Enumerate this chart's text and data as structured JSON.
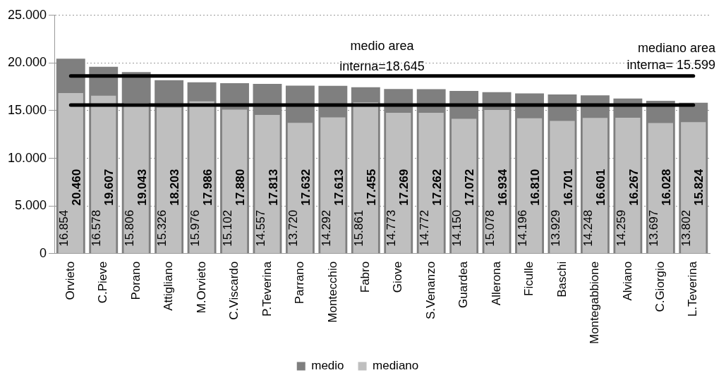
{
  "chart_data": {
    "type": "bar",
    "categories": [
      "Orvieto",
      "C.Pieve",
      "Porano",
      "Attigliano",
      "M.Orvieto",
      "C.Viscardo",
      "P.Teverina",
      "Parrano",
      "Montecchio",
      "Fabro",
      "Giove",
      "S.Venanzo",
      "Guardea",
      "Allerona",
      "Ficulle",
      "Baschi",
      "Montegabbione",
      "Alviano",
      "C.Giorgio",
      "L.Teverina"
    ],
    "series": [
      {
        "name": "medio",
        "color": "#7f7f7f",
        "values": [
          20460,
          19607,
          19043,
          18203,
          17986,
          17880,
          17813,
          17632,
          17613,
          17455,
          17269,
          17262,
          17072,
          16934,
          16810,
          16701,
          16601,
          16267,
          16028,
          15824
        ],
        "value_labels": [
          "20.460",
          "19.607",
          "19.043",
          "18.203",
          "17.986",
          "17.880",
          "17.813",
          "17.632",
          "17.613",
          "17.455",
          "17.269",
          "17.262",
          "17.072",
          "16.934",
          "16.810",
          "16.701",
          "16.601",
          "16.267",
          "16.028",
          "15.824"
        ]
      },
      {
        "name": "mediano",
        "color": "#bfbfbf",
        "values": [
          16854,
          16578,
          15806,
          15326,
          15976,
          15102,
          14557,
          13720,
          14292,
          15861,
          14773,
          14772,
          14150,
          15078,
          14196,
          13929,
          14248,
          14259,
          13697,
          13802
        ],
        "value_labels": [
          "16.854",
          "16.578",
          "15.806",
          "15.326",
          "15.976",
          "15.102",
          "14.557",
          "13.720",
          "14.292",
          "15.861",
          "14.773",
          "14.772",
          "14.150",
          "15.078",
          "14.196",
          "13.929",
          "14.248",
          "14.259",
          "13.697",
          "13.802"
        ]
      }
    ],
    "ylim": [
      0,
      25000
    ],
    "yticks": [
      {
        "value": 0,
        "label": "0"
      },
      {
        "value": 5000,
        "label": "5.000"
      },
      {
        "value": 10000,
        "label": "10.000"
      },
      {
        "value": 15000,
        "label": "15.000"
      },
      {
        "value": 20000,
        "label": "20.000"
      },
      {
        "value": 25000,
        "label": "25.000"
      }
    ],
    "ref_lines": [
      {
        "axis": "y",
        "value": 18645,
        "label": "medio area\ninterna=18.645",
        "color": "#000000"
      },
      {
        "axis": "y",
        "value": 15599,
        "label": "mediano area\ninterna= 15.599",
        "color": "#000000"
      }
    ],
    "grid": "y",
    "legend": "bottom"
  }
}
